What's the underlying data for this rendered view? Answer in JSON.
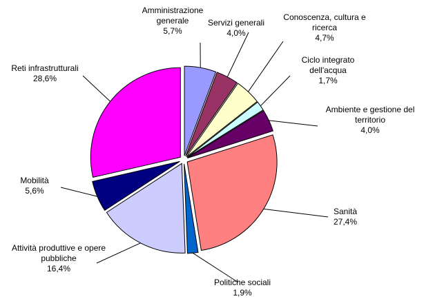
{
  "chart_data": {
    "type": "pie",
    "categories": [
      "Amministrazione generale",
      "Servizi generali",
      "Conoscenza, cultura e ricerca",
      "Ciclo integrato dell'acqua",
      "Ambiente e gestione del territorio",
      "Sanità",
      "Politiche sociali",
      "Attività produttive e opere pubbliche",
      "Mobilità",
      "Reti infrastrutturali"
    ],
    "values": [
      5.7,
      4.0,
      4.7,
      1.7,
      4.0,
      27.4,
      1.9,
      16.4,
      5.6,
      28.6
    ],
    "value_labels": [
      "5,7%",
      "4,0%",
      "4,7%",
      "1,7%",
      "4,0%",
      "27,4%",
      "1,9%",
      "16,4%",
      "5,6%",
      "28,6%"
    ],
    "colors": [
      "#9999ff",
      "#993366",
      "#ffffcc",
      "#ccffff",
      "#660066",
      "#ff8080",
      "#0066cc",
      "#ccccff",
      "#000080",
      "#ff00ff"
    ]
  }
}
